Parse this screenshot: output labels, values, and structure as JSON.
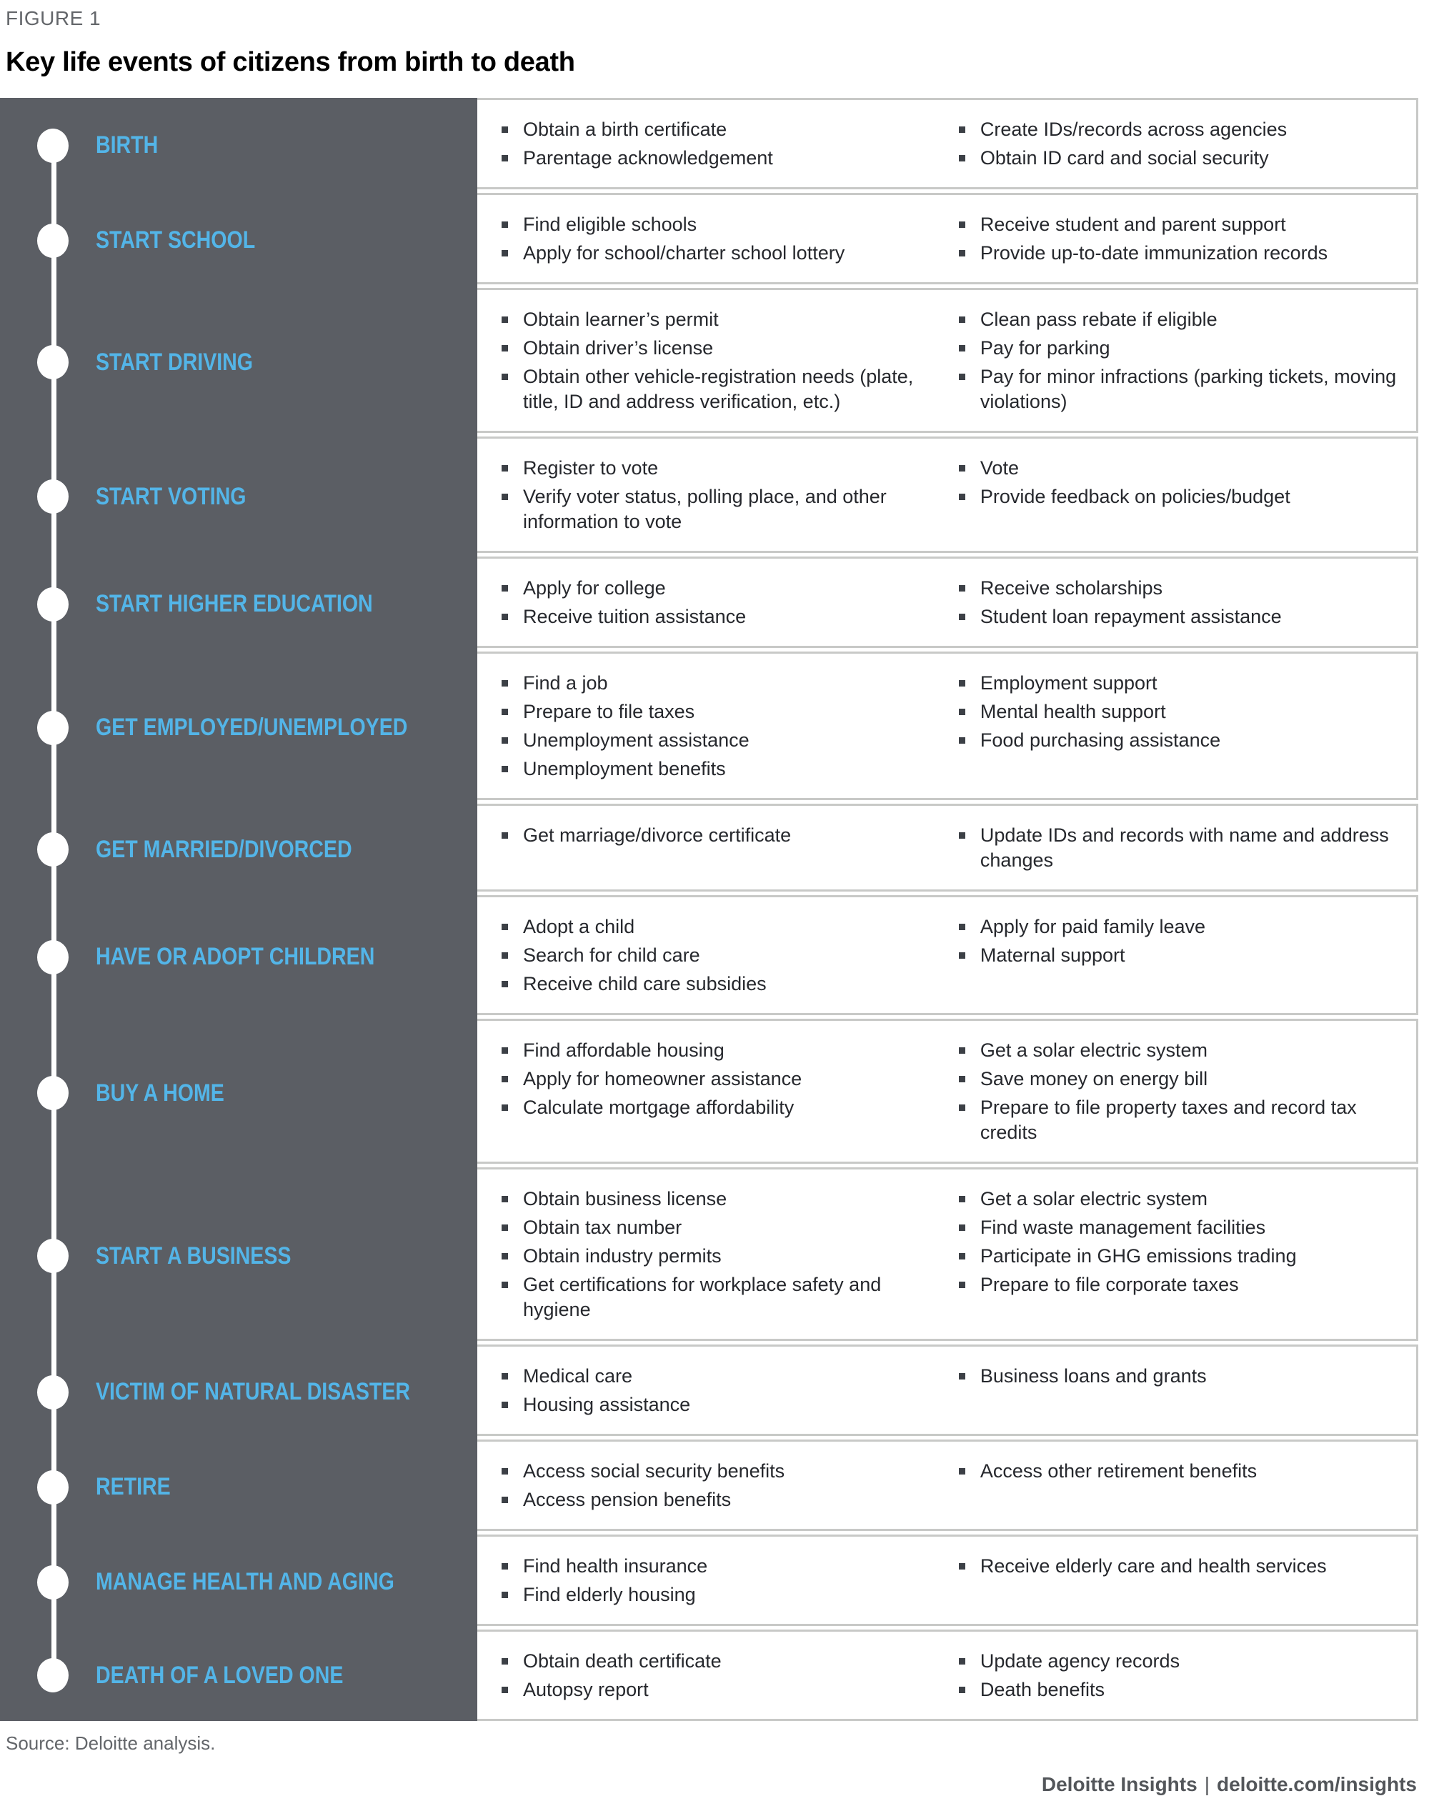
{
  "figure_label": "FIGURE 1",
  "title": "Key life events of citizens from birth to death",
  "source": "Source: Deloitte analysis.",
  "footer": {
    "brand": "Deloitte Insights",
    "separator": "|",
    "url": "deloitte.com/insights"
  },
  "colors": {
    "panel_background": "#5b5e64",
    "accent_blue": "#53b5e8",
    "card_border": "#c8c9c7",
    "body_text": "#26282d",
    "muted_text": "#63666a",
    "footer_text": "#53565a"
  },
  "events": [
    {
      "label": "BIRTH",
      "tasks_left": [
        "Obtain a birth certificate",
        "Parentage acknowledgement"
      ],
      "tasks_right": [
        "Create IDs/records across agencies",
        "Obtain ID card and social security"
      ]
    },
    {
      "label": "START SCHOOL",
      "tasks_left": [
        "Find eligible schools",
        "Apply for school/charter school lottery"
      ],
      "tasks_right": [
        "Receive student and parent support",
        "Provide up-to-date immunization records"
      ]
    },
    {
      "label": "START DRIVING",
      "tasks_left": [
        "Obtain learner’s permit",
        "Obtain driver’s license",
        "Obtain other vehicle-registration needs (plate, title, ID and address verification, etc.)"
      ],
      "tasks_right": [
        "Clean pass rebate if eligible",
        "Pay for parking",
        "Pay for minor infractions (parking tickets, moving violations)"
      ]
    },
    {
      "label": "START VOTING",
      "tasks_left": [
        "Register to vote",
        "Verify voter status, polling place, and other information to vote"
      ],
      "tasks_right": [
        "Vote",
        "Provide feedback on policies/budget"
      ]
    },
    {
      "label": "START HIGHER EDUCATION",
      "tasks_left": [
        "Apply for college",
        "Receive tuition assistance"
      ],
      "tasks_right": [
        "Receive scholarships",
        "Student loan repayment assistance"
      ]
    },
    {
      "label": "GET EMPLOYED/UNEMPLOYED",
      "tasks_left": [
        "Find a job",
        "Prepare to file taxes",
        "Unemployment assistance",
        "Unemployment benefits"
      ],
      "tasks_right": [
        "Employment support",
        "Mental health support",
        "Food purchasing assistance"
      ]
    },
    {
      "label": "GET MARRIED/DIVORCED",
      "tasks_left": [
        "Get marriage/divorce certificate"
      ],
      "tasks_right": [
        "Update IDs and records with name and address changes"
      ]
    },
    {
      "label": "HAVE OR ADOPT CHILDREN",
      "tasks_left": [
        "Adopt a child",
        "Search for child care",
        "Receive child care subsidies"
      ],
      "tasks_right": [
        "Apply for paid family leave",
        "Maternal support"
      ]
    },
    {
      "label": "BUY A HOME",
      "tasks_left": [
        "Find affordable housing",
        "Apply for homeowner assistance",
        "Calculate mortgage affordability"
      ],
      "tasks_right": [
        "Get a solar electric system",
        "Save money on energy bill",
        "Prepare to file property taxes and record tax credits"
      ]
    },
    {
      "label": "START A BUSINESS",
      "tasks_left": [
        "Obtain business license",
        "Obtain tax number",
        "Obtain industry permits",
        "Get certifications for workplace safety and hygiene"
      ],
      "tasks_right": [
        "Get a solar electric system",
        "Find waste management facilities",
        "Participate in GHG emissions trading",
        "Prepare to file corporate taxes"
      ]
    },
    {
      "label": "VICTIM OF NATURAL DISASTER",
      "tasks_left": [
        "Medical care",
        "Housing assistance"
      ],
      "tasks_right": [
        "Business loans and grants"
      ]
    },
    {
      "label": "RETIRE",
      "tasks_left": [
        "Access social security benefits",
        "Access pension benefits"
      ],
      "tasks_right": [
        "Access other retirement benefits"
      ]
    },
    {
      "label": "MANAGE HEALTH AND AGING",
      "tasks_left": [
        "Find health insurance",
        "Find elderly housing"
      ],
      "tasks_right": [
        "Receive elderly care and health services"
      ]
    },
    {
      "label": "DEATH OF A LOVED ONE",
      "tasks_left": [
        "Obtain death certificate",
        "Autopsy report"
      ],
      "tasks_right": [
        "Update agency records",
        "Death benefits"
      ]
    }
  ]
}
